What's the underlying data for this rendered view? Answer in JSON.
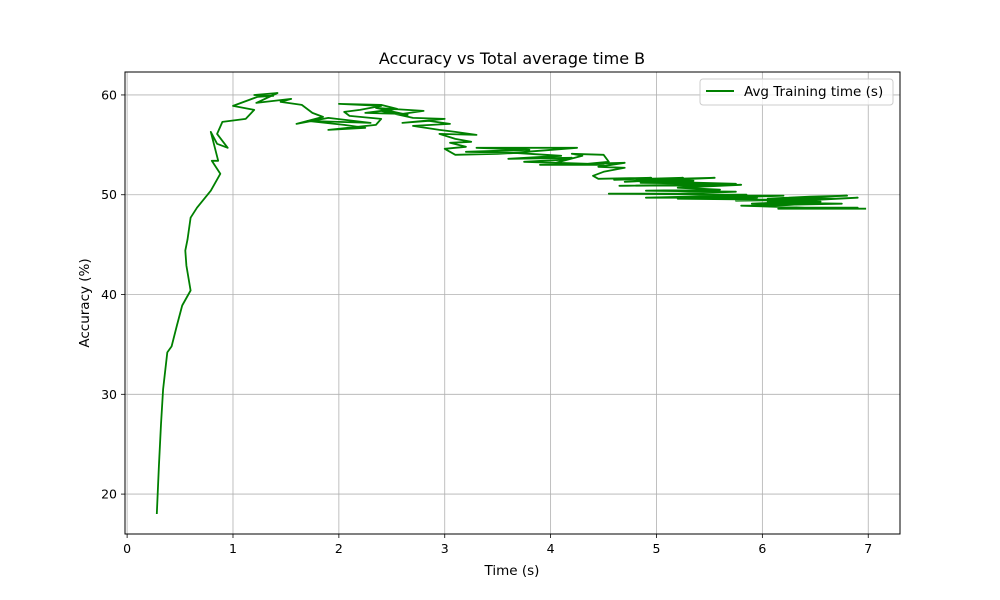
{
  "chart_data": {
    "type": "line",
    "title": "Accuracy vs Total average time B",
    "xlabel": "Time (s)",
    "ylabel": "Accuracy (%)",
    "xlim": [
      -0.02,
      7.3
    ],
    "ylim": [
      16,
      62.3
    ],
    "xticks": [
      0,
      1,
      2,
      3,
      4,
      5,
      6,
      7
    ],
    "yticks": [
      20,
      30,
      40,
      50,
      60
    ],
    "grid": true,
    "legend_position": "top-right",
    "series": [
      {
        "name": "Avg Training time (s)",
        "color": "#008000",
        "points": [
          [
            0.28,
            18.0
          ],
          [
            0.3,
            22.8
          ],
          [
            0.32,
            27.0
          ],
          [
            0.34,
            30.5
          ],
          [
            0.38,
            34.2
          ],
          [
            0.42,
            34.8
          ],
          [
            0.47,
            36.9
          ],
          [
            0.52,
            38.9
          ],
          [
            0.6,
            40.4
          ],
          [
            0.56,
            42.9
          ],
          [
            0.55,
            44.4
          ],
          [
            0.57,
            45.5
          ],
          [
            0.6,
            47.7
          ],
          [
            0.66,
            48.7
          ],
          [
            0.79,
            50.4
          ],
          [
            0.88,
            52.1
          ],
          [
            0.8,
            53.4
          ],
          [
            0.86,
            53.4
          ],
          [
            0.79,
            56.3
          ],
          [
            0.85,
            55.1
          ],
          [
            0.95,
            54.7
          ],
          [
            0.85,
            56.1
          ],
          [
            0.9,
            57.3
          ],
          [
            1.12,
            57.6
          ],
          [
            1.2,
            58.5
          ],
          [
            1.0,
            58.9
          ],
          [
            1.23,
            59.8
          ],
          [
            1.38,
            59.9
          ],
          [
            1.2,
            60.0
          ],
          [
            1.42,
            60.2
          ],
          [
            1.22,
            59.2
          ],
          [
            1.55,
            59.6
          ],
          [
            1.45,
            59.3
          ],
          [
            1.65,
            59.0
          ],
          [
            1.75,
            58.2
          ],
          [
            1.85,
            57.8
          ],
          [
            1.6,
            57.1
          ],
          [
            1.9,
            57.7
          ],
          [
            2.3,
            57.2
          ],
          [
            1.7,
            57.4
          ],
          [
            2.05,
            57.0
          ],
          [
            2.25,
            56.7
          ],
          [
            1.9,
            56.5
          ],
          [
            2.35,
            57.0
          ],
          [
            2.4,
            57.6
          ],
          [
            2.1,
            57.9
          ],
          [
            2.05,
            58.3
          ],
          [
            2.2,
            58.5
          ],
          [
            2.4,
            58.9
          ],
          [
            2.0,
            59.1
          ],
          [
            2.4,
            59.0
          ],
          [
            2.55,
            58.6
          ],
          [
            2.25,
            58.2
          ],
          [
            2.6,
            58.1
          ],
          [
            2.8,
            58.4
          ],
          [
            2.35,
            58.7
          ],
          [
            2.65,
            58.0
          ],
          [
            2.4,
            58.4
          ],
          [
            2.7,
            57.7
          ],
          [
            3.0,
            57.6
          ],
          [
            2.6,
            57.2
          ],
          [
            2.85,
            57.4
          ],
          [
            3.05,
            57.1
          ],
          [
            2.7,
            56.9
          ],
          [
            2.95,
            56.5
          ],
          [
            3.1,
            56.3
          ],
          [
            3.3,
            56.0
          ],
          [
            2.95,
            56.1
          ],
          [
            3.1,
            55.6
          ],
          [
            3.25,
            55.3
          ],
          [
            3.05,
            55.2
          ],
          [
            3.2,
            54.8
          ],
          [
            3.0,
            54.6
          ],
          [
            3.1,
            54.0
          ],
          [
            3.5,
            54.1
          ],
          [
            3.7,
            54.2
          ],
          [
            3.2,
            54.3
          ],
          [
            3.8,
            54.5
          ],
          [
            3.3,
            54.7
          ],
          [
            4.25,
            54.7
          ],
          [
            3.65,
            54.2
          ],
          [
            4.1,
            53.9
          ],
          [
            3.6,
            53.6
          ],
          [
            4.2,
            53.7
          ],
          [
            4.1,
            53.5
          ],
          [
            3.75,
            53.3
          ],
          [
            4.35,
            53.1
          ],
          [
            3.9,
            53.0
          ],
          [
            4.5,
            53.0
          ],
          [
            4.05,
            53.2
          ],
          [
            4.3,
            53.9
          ],
          [
            4.2,
            54.1
          ],
          [
            4.5,
            54.0
          ],
          [
            4.55,
            53.3
          ],
          [
            4.35,
            53.1
          ],
          [
            4.7,
            53.2
          ],
          [
            4.45,
            52.8
          ],
          [
            4.7,
            52.7
          ],
          [
            4.5,
            52.3
          ],
          [
            4.4,
            51.9
          ],
          [
            4.45,
            51.6
          ],
          [
            4.95,
            51.7
          ],
          [
            4.6,
            51.5
          ],
          [
            5.25,
            51.7
          ],
          [
            4.7,
            51.3
          ],
          [
            5.55,
            51.7
          ],
          [
            4.8,
            51.5
          ],
          [
            5.35,
            51.4
          ],
          [
            4.85,
            51.2
          ],
          [
            5.75,
            51.1
          ],
          [
            5.05,
            51.3
          ],
          [
            5.25,
            51.0
          ],
          [
            4.65,
            50.9
          ],
          [
            5.8,
            51.0
          ],
          [
            5.2,
            50.7
          ],
          [
            5.6,
            50.5
          ],
          [
            4.9,
            50.4
          ],
          [
            5.75,
            50.3
          ],
          [
            5.2,
            50.1
          ],
          [
            4.55,
            50.1
          ],
          [
            5.85,
            50.0
          ],
          [
            5.3,
            49.8
          ],
          [
            4.9,
            49.7
          ],
          [
            5.95,
            49.7
          ],
          [
            5.5,
            49.9
          ],
          [
            6.2,
            49.9
          ],
          [
            5.6,
            49.7
          ],
          [
            5.2,
            49.6
          ],
          [
            6.05,
            49.5
          ],
          [
            5.75,
            49.4
          ],
          [
            6.5,
            49.5
          ],
          [
            6.05,
            49.6
          ],
          [
            6.45,
            49.8
          ],
          [
            6.8,
            49.9
          ],
          [
            6.25,
            49.7
          ],
          [
            6.7,
            49.6
          ],
          [
            6.35,
            49.4
          ],
          [
            6.9,
            49.7
          ],
          [
            6.05,
            49.3
          ],
          [
            6.55,
            49.3
          ],
          [
            6.25,
            49.0
          ],
          [
            6.75,
            49.1
          ],
          [
            6.1,
            49.2
          ],
          [
            5.9,
            49.1
          ],
          [
            6.3,
            49.0
          ],
          [
            6.1,
            48.9
          ],
          [
            5.8,
            48.9
          ],
          [
            6.4,
            48.7
          ],
          [
            6.9,
            48.7
          ],
          [
            6.15,
            48.6
          ],
          [
            6.98,
            48.6
          ]
        ]
      }
    ]
  }
}
